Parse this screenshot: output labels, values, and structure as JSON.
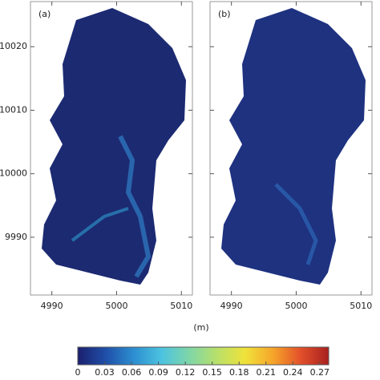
{
  "chart_data": {
    "type": "map",
    "panels": [
      {
        "label": "(a)"
      },
      {
        "label": "(b)"
      }
    ],
    "xlabel": "(m)",
    "xlim": [
      4986.7,
      5011.7
    ],
    "xticks": [
      4990,
      5000,
      5010
    ],
    "ylim": [
      9980.9,
      10027.1
    ],
    "yticks": [
      9990,
      10000,
      10010,
      10020
    ],
    "colorbar": {
      "clim": [
        0,
        0.28
      ],
      "ticks": [
        0,
        0.03,
        0.06,
        0.09,
        0.12,
        0.15,
        0.18,
        0.21,
        0.24,
        0.27
      ],
      "colors": [
        "#1b1f6e",
        "#1f4fa8",
        "#2c8ed0",
        "#4cc3e0",
        "#7fd6a8",
        "#b8e06a",
        "#f0e23a",
        "#f6a52a",
        "#e2502a",
        "#a8201f"
      ]
    }
  }
}
